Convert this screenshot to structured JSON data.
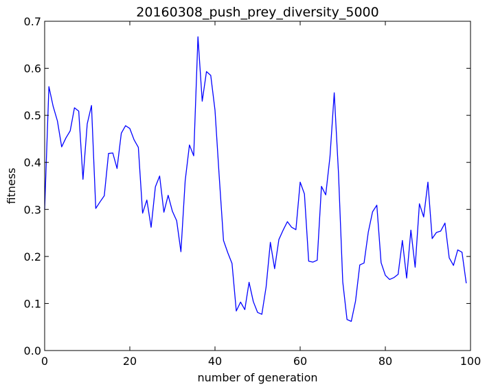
{
  "chart_data": {
    "type": "line",
    "title": "20160308_push_prey_diversity_5000",
    "xlabel": "number of generation",
    "ylabel": "fitness",
    "xlim": [
      0,
      100
    ],
    "ylim": [
      0,
      0.7
    ],
    "xticks": [
      0,
      20,
      40,
      60,
      80,
      100
    ],
    "xtick_labels": [
      "0",
      "20",
      "40",
      "60",
      "80",
      "100"
    ],
    "yticks": [
      0.0,
      0.1,
      0.2,
      0.3,
      0.4,
      0.5,
      0.6,
      0.7
    ],
    "ytick_labels": [
      "0.0",
      "0.1",
      "0.2",
      "0.3",
      "0.4",
      "0.5",
      "0.6",
      "0.7"
    ],
    "grid": false,
    "series": [
      {
        "color": "#0000ff",
        "x": [
          0,
          1,
          2,
          3,
          4,
          5,
          6,
          7,
          8,
          9,
          10,
          11,
          12,
          13,
          14,
          15,
          16,
          17,
          18,
          19,
          20,
          21,
          22,
          23,
          24,
          25,
          26,
          27,
          28,
          29,
          30,
          31,
          32,
          33,
          34,
          35,
          36,
          37,
          38,
          39,
          40,
          41,
          42,
          43,
          44,
          45,
          46,
          47,
          48,
          49,
          50,
          51,
          52,
          53,
          54,
          55,
          56,
          57,
          58,
          59,
          60,
          61,
          62,
          63,
          64,
          65,
          66,
          67,
          68,
          69,
          70,
          71,
          72,
          73,
          74,
          75,
          76,
          77,
          78,
          79,
          80,
          81,
          82,
          83,
          84,
          85,
          86,
          87,
          88,
          89,
          90,
          91,
          92,
          93,
          94,
          95,
          96,
          97,
          98,
          99
        ],
        "y": [
          0.3,
          0.561,
          0.519,
          0.488,
          0.433,
          0.452,
          0.467,
          0.516,
          0.509,
          0.364,
          0.482,
          0.521,
          0.302,
          0.316,
          0.329,
          0.419,
          0.42,
          0.387,
          0.462,
          0.478,
          0.472,
          0.448,
          0.432,
          0.292,
          0.32,
          0.262,
          0.348,
          0.371,
          0.294,
          0.33,
          0.296,
          0.276,
          0.21,
          0.361,
          0.437,
          0.414,
          0.667,
          0.53,
          0.593,
          0.585,
          0.511,
          0.369,
          0.234,
          0.208,
          0.185,
          0.084,
          0.103,
          0.087,
          0.145,
          0.104,
          0.081,
          0.077,
          0.135,
          0.23,
          0.174,
          0.236,
          0.256,
          0.274,
          0.262,
          0.257,
          0.358,
          0.333,
          0.19,
          0.188,
          0.192,
          0.349,
          0.331,
          0.412,
          0.548,
          0.377,
          0.146,
          0.066,
          0.062,
          0.105,
          0.182,
          0.186,
          0.252,
          0.295,
          0.309,
          0.187,
          0.16,
          0.151,
          0.155,
          0.162,
          0.234,
          0.154,
          0.256,
          0.177,
          0.312,
          0.284,
          0.358,
          0.238,
          0.251,
          0.254,
          0.271,
          0.197,
          0.181,
          0.214,
          0.209,
          0.143
        ]
      }
    ]
  }
}
